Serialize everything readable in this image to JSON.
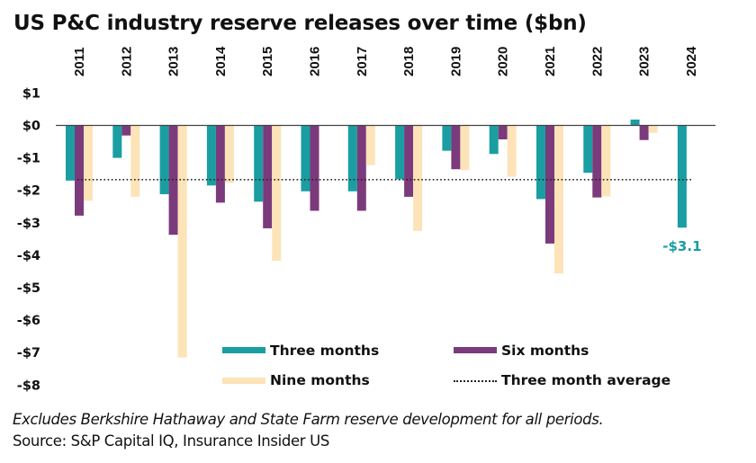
{
  "chart_data": {
    "type": "bar",
    "title": "US P&C industry reserve releases over time ($bn)",
    "xlabel": "",
    "ylabel": "",
    "categories": [
      "2011",
      "2012",
      "2013",
      "2014",
      "2015",
      "2016",
      "2017",
      "2018",
      "2019",
      "2020",
      "2021",
      "2022",
      "2023",
      "2024"
    ],
    "series": [
      {
        "name": "Three months",
        "color": "#1a9ea2",
        "values": [
          -1.7,
          -1.0,
          -2.12,
          -1.85,
          -2.35,
          -2.03,
          -2.03,
          -1.66,
          -0.78,
          -0.88,
          -2.27,
          -1.46,
          0.18,
          -3.15
        ]
      },
      {
        "name": "Six months",
        "color": "#7b3a7c",
        "values": [
          -2.78,
          -0.31,
          -3.37,
          -2.38,
          -3.17,
          -2.63,
          -2.63,
          -2.2,
          -1.35,
          -0.43,
          -3.64,
          -2.22,
          -0.45,
          null
        ]
      },
      {
        "name": "Nine months",
        "color": "#fde3b8",
        "values": [
          -2.32,
          -2.2,
          -7.15,
          -1.77,
          -4.17,
          null,
          -1.22,
          -3.25,
          -1.38,
          -1.58,
          -4.56,
          -2.19,
          -0.23,
          null
        ]
      }
    ],
    "reference_lines": [
      {
        "name": "Three month average",
        "value": -1.67,
        "style": "dotted",
        "color": "#222222"
      }
    ],
    "annotations": [
      {
        "category": "2024",
        "series": "Three months",
        "text": "-$3.1",
        "color": "#1a9ea2"
      }
    ],
    "ylim": [
      -8,
      1
    ],
    "yticks": [
      1,
      0,
      -1,
      -2,
      -3,
      -4,
      -5,
      -6,
      -7,
      -8
    ],
    "ytick_labels": [
      "$1",
      "$0",
      "-$1",
      "-$2",
      "-$3",
      "-$4",
      "-$5",
      "-$6",
      "-$7",
      "-$8"
    ],
    "grid": false,
    "category_labels_position": "top",
    "category_labels_rotation": "vertical",
    "legend": {
      "placement": "bottom-center",
      "entries": [
        {
          "label": "Three months",
          "type": "bar",
          "color": "#1a9ea2"
        },
        {
          "label": "Six months",
          "type": "bar",
          "color": "#7b3a7c"
        },
        {
          "label": "Nine months",
          "type": "bar",
          "color": "#fde3b8"
        },
        {
          "label": "Three month average",
          "type": "dotted-line",
          "color": "#222222"
        }
      ]
    }
  },
  "footer": {
    "note": "Excludes Berkshire Hathaway and State Farm reserve development for all periods.",
    "source": "Source: S&P Capital IQ, Insurance Insider US"
  }
}
